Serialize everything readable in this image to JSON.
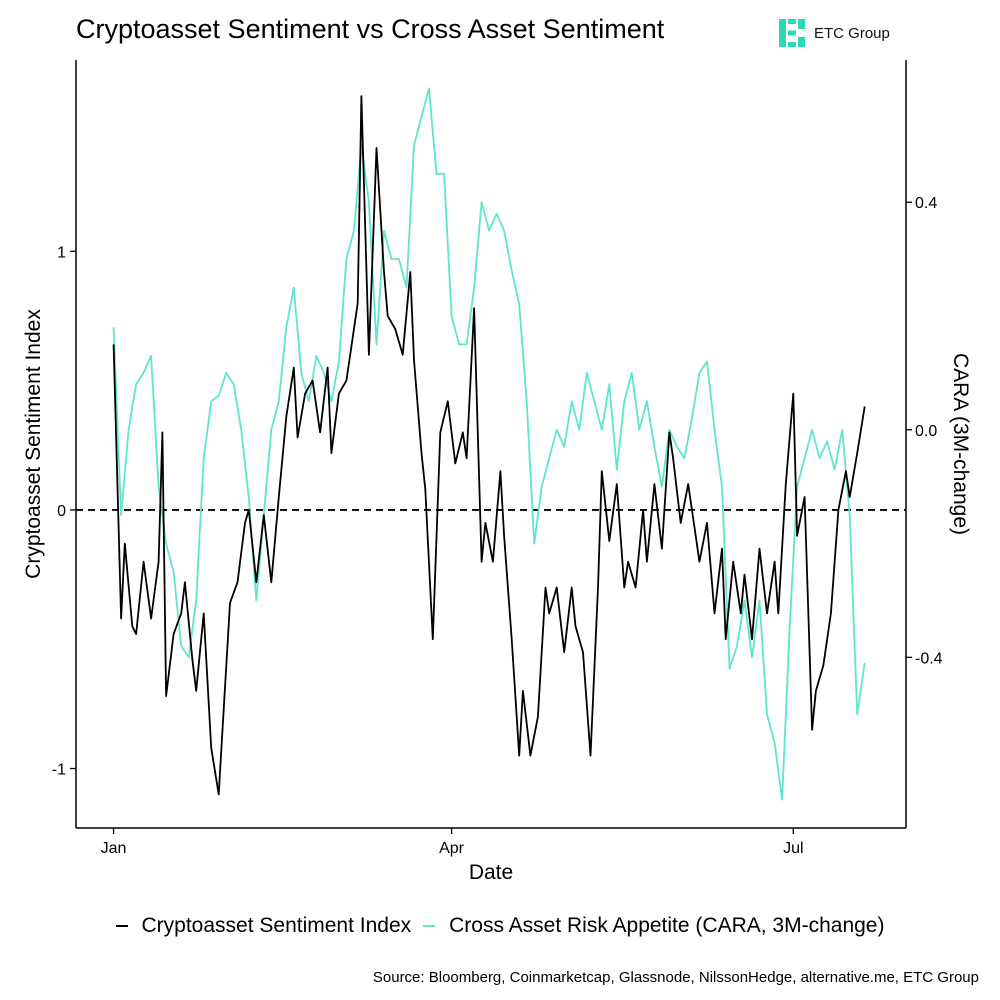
{
  "header": {
    "title": "Cryptoasset Sentiment vs Cross Asset Sentiment",
    "logo_text": "ETC Group"
  },
  "footer": {
    "source": "Source: Bloomberg, Coinmarketcap, Glassnode, NilssonHedge, alternative.me, ETC Group"
  },
  "colors": {
    "sentiment": "#000000",
    "cara": "#5ee6cc",
    "logo": "#2bd9b4"
  },
  "icons": {
    "logo": "etc-group-logo-icon"
  },
  "chart_data": {
    "type": "line",
    "xlabel": "Date",
    "ylabel_left": "Cryptoasset Sentiment Index",
    "ylabel_right": "CARA (3M-change)",
    "x_ticks": [
      {
        "date": "2022-01-01",
        "label": "Jan"
      },
      {
        "date": "2022-04-01",
        "label": "Apr"
      },
      {
        "date": "2022-07-01",
        "label": "Jul"
      }
    ],
    "x_range": [
      "2021-12-22",
      "2022-07-31"
    ],
    "y_left": {
      "range": [
        -1.23,
        1.74
      ],
      "ticks": [
        -1,
        0,
        1
      ],
      "tick_labels": [
        "-1",
        "0",
        "1"
      ]
    },
    "y_right": {
      "range": [
        -0.7,
        0.65
      ],
      "ticks": [
        -0.4,
        0.0,
        0.4
      ],
      "tick_labels": [
        "-0.4",
        "0.0",
        "0.4"
      ]
    },
    "reference_line": {
      "axis": "left",
      "value": 0,
      "style": "dashed"
    },
    "grid": false,
    "legend_position": "bottom",
    "series": [
      {
        "name": "Cryptoasset Sentiment Index",
        "axis": "left",
        "color": "#000000",
        "points": [
          [
            "2022-01-01",
            0.64
          ],
          [
            "2022-01-03",
            -0.42
          ],
          [
            "2022-01-04",
            -0.13
          ],
          [
            "2022-01-06",
            -0.45
          ],
          [
            "2022-01-07",
            -0.48
          ],
          [
            "2022-01-09",
            -0.2
          ],
          [
            "2022-01-11",
            -0.42
          ],
          [
            "2022-01-13",
            -0.2
          ],
          [
            "2022-01-14",
            0.3
          ],
          [
            "2022-01-15",
            -0.72
          ],
          [
            "2022-01-17",
            -0.48
          ],
          [
            "2022-01-19",
            -0.4
          ],
          [
            "2022-01-20",
            -0.28
          ],
          [
            "2022-01-22",
            -0.58
          ],
          [
            "2022-01-23",
            -0.7
          ],
          [
            "2022-01-25",
            -0.4
          ],
          [
            "2022-01-27",
            -0.92
          ],
          [
            "2022-01-29",
            -1.1
          ],
          [
            "2022-01-30",
            -0.85
          ],
          [
            "2022-02-01",
            -0.36
          ],
          [
            "2022-02-03",
            -0.28
          ],
          [
            "2022-02-05",
            -0.05
          ],
          [
            "2022-02-06",
            0.0
          ],
          [
            "2022-02-08",
            -0.28
          ],
          [
            "2022-02-10",
            -0.02
          ],
          [
            "2022-02-12",
            -0.28
          ],
          [
            "2022-02-14",
            0.05
          ],
          [
            "2022-02-16",
            0.36
          ],
          [
            "2022-02-18",
            0.55
          ],
          [
            "2022-02-19",
            0.28
          ],
          [
            "2022-02-21",
            0.45
          ],
          [
            "2022-02-23",
            0.5
          ],
          [
            "2022-02-25",
            0.3
          ],
          [
            "2022-02-27",
            0.55
          ],
          [
            "2022-02-28",
            0.22
          ],
          [
            "2022-03-02",
            0.45
          ],
          [
            "2022-03-04",
            0.5
          ],
          [
            "2022-03-05",
            0.6
          ],
          [
            "2022-03-07",
            0.8
          ],
          [
            "2022-03-08",
            1.6
          ],
          [
            "2022-03-10",
            0.6
          ],
          [
            "2022-03-12",
            1.4
          ],
          [
            "2022-03-14",
            0.92
          ],
          [
            "2022-03-15",
            0.75
          ],
          [
            "2022-03-17",
            0.7
          ],
          [
            "2022-03-19",
            0.6
          ],
          [
            "2022-03-21",
            0.92
          ],
          [
            "2022-03-22",
            0.58
          ],
          [
            "2022-03-24",
            0.22
          ],
          [
            "2022-03-25",
            0.08
          ],
          [
            "2022-03-27",
            -0.5
          ],
          [
            "2022-03-29",
            0.3
          ],
          [
            "2022-03-31",
            0.42
          ],
          [
            "2022-04-02",
            0.18
          ],
          [
            "2022-04-04",
            0.3
          ],
          [
            "2022-04-05",
            0.2
          ],
          [
            "2022-04-07",
            0.78
          ],
          [
            "2022-04-09",
            -0.2
          ],
          [
            "2022-04-10",
            -0.05
          ],
          [
            "2022-04-12",
            -0.2
          ],
          [
            "2022-04-14",
            0.15
          ],
          [
            "2022-04-15",
            -0.1
          ],
          [
            "2022-04-17",
            -0.5
          ],
          [
            "2022-04-19",
            -0.95
          ],
          [
            "2022-04-20",
            -0.7
          ],
          [
            "2022-04-22",
            -0.95
          ],
          [
            "2022-04-24",
            -0.8
          ],
          [
            "2022-04-26",
            -0.3
          ],
          [
            "2022-04-27",
            -0.4
          ],
          [
            "2022-04-29",
            -0.3
          ],
          [
            "2022-05-01",
            -0.55
          ],
          [
            "2022-05-03",
            -0.3
          ],
          [
            "2022-05-04",
            -0.45
          ],
          [
            "2022-05-06",
            -0.55
          ],
          [
            "2022-05-08",
            -0.95
          ],
          [
            "2022-05-10",
            -0.3
          ],
          [
            "2022-05-11",
            0.15
          ],
          [
            "2022-05-13",
            -0.12
          ],
          [
            "2022-05-15",
            0.1
          ],
          [
            "2022-05-17",
            -0.3
          ],
          [
            "2022-05-18",
            -0.2
          ],
          [
            "2022-05-20",
            -0.3
          ],
          [
            "2022-05-22",
            0.0
          ],
          [
            "2022-05-23",
            -0.2
          ],
          [
            "2022-05-25",
            0.1
          ],
          [
            "2022-05-27",
            -0.15
          ],
          [
            "2022-05-29",
            0.3
          ],
          [
            "2022-05-30",
            0.2
          ],
          [
            "2022-06-01",
            -0.05
          ],
          [
            "2022-06-03",
            0.1
          ],
          [
            "2022-06-05",
            -0.1
          ],
          [
            "2022-06-06",
            -0.2
          ],
          [
            "2022-06-08",
            -0.05
          ],
          [
            "2022-06-10",
            -0.4
          ],
          [
            "2022-06-12",
            -0.15
          ],
          [
            "2022-06-13",
            -0.5
          ],
          [
            "2022-06-15",
            -0.2
          ],
          [
            "2022-06-17",
            -0.4
          ],
          [
            "2022-06-18",
            -0.25
          ],
          [
            "2022-06-20",
            -0.5
          ],
          [
            "2022-06-22",
            -0.15
          ],
          [
            "2022-06-24",
            -0.4
          ],
          [
            "2022-06-26",
            -0.2
          ],
          [
            "2022-06-27",
            -0.4
          ],
          [
            "2022-06-29",
            0.1
          ],
          [
            "2022-07-01",
            0.45
          ],
          [
            "2022-07-02",
            -0.1
          ],
          [
            "2022-07-04",
            0.05
          ],
          [
            "2022-07-06",
            -0.85
          ],
          [
            "2022-07-07",
            -0.7
          ],
          [
            "2022-07-09",
            -0.6
          ],
          [
            "2022-07-11",
            -0.4
          ],
          [
            "2022-07-13",
            0.0
          ],
          [
            "2022-07-15",
            0.15
          ],
          [
            "2022-07-16",
            0.05
          ],
          [
            "2022-07-18",
            0.22
          ],
          [
            "2022-07-20",
            0.4
          ]
        ]
      },
      {
        "name": "Cross Asset Risk Appetite (CARA, 3M-change)",
        "axis": "right",
        "color": "#5ee6cc",
        "points": [
          [
            "2022-01-01",
            0.18
          ],
          [
            "2022-01-03",
            -0.15
          ],
          [
            "2022-01-05",
            0.0
          ],
          [
            "2022-01-07",
            0.08
          ],
          [
            "2022-01-09",
            0.1
          ],
          [
            "2022-01-11",
            0.13
          ],
          [
            "2022-01-13",
            -0.1
          ],
          [
            "2022-01-15",
            -0.2
          ],
          [
            "2022-01-17",
            -0.25
          ],
          [
            "2022-01-19",
            -0.38
          ],
          [
            "2022-01-21",
            -0.4
          ],
          [
            "2022-01-23",
            -0.3
          ],
          [
            "2022-01-25",
            -0.05
          ],
          [
            "2022-01-27",
            0.05
          ],
          [
            "2022-01-29",
            0.06
          ],
          [
            "2022-01-31",
            0.1
          ],
          [
            "2022-02-02",
            0.08
          ],
          [
            "2022-02-04",
            0.0
          ],
          [
            "2022-02-06",
            -0.12
          ],
          [
            "2022-02-08",
            -0.3
          ],
          [
            "2022-02-10",
            -0.15
          ],
          [
            "2022-02-12",
            0.0
          ],
          [
            "2022-02-14",
            0.05
          ],
          [
            "2022-02-16",
            0.18
          ],
          [
            "2022-02-18",
            0.25
          ],
          [
            "2022-02-20",
            0.1
          ],
          [
            "2022-02-22",
            0.05
          ],
          [
            "2022-02-24",
            0.13
          ],
          [
            "2022-02-26",
            0.1
          ],
          [
            "2022-02-28",
            0.05
          ],
          [
            "2022-03-02",
            0.12
          ],
          [
            "2022-03-04",
            0.3
          ],
          [
            "2022-03-06",
            0.35
          ],
          [
            "2022-03-08",
            0.5
          ],
          [
            "2022-03-10",
            0.4
          ],
          [
            "2022-03-12",
            0.15
          ],
          [
            "2022-03-14",
            0.35
          ],
          [
            "2022-03-16",
            0.3
          ],
          [
            "2022-03-18",
            0.3
          ],
          [
            "2022-03-20",
            0.25
          ],
          [
            "2022-03-22",
            0.5
          ],
          [
            "2022-03-24",
            0.55
          ],
          [
            "2022-03-26",
            0.6
          ],
          [
            "2022-03-28",
            0.45
          ],
          [
            "2022-03-30",
            0.45
          ],
          [
            "2022-04-01",
            0.2
          ],
          [
            "2022-04-03",
            0.15
          ],
          [
            "2022-04-05",
            0.15
          ],
          [
            "2022-04-07",
            0.25
          ],
          [
            "2022-04-09",
            0.4
          ],
          [
            "2022-04-11",
            0.35
          ],
          [
            "2022-04-13",
            0.38
          ],
          [
            "2022-04-15",
            0.35
          ],
          [
            "2022-04-17",
            0.28
          ],
          [
            "2022-04-19",
            0.22
          ],
          [
            "2022-04-21",
            0.05
          ],
          [
            "2022-04-23",
            -0.2
          ],
          [
            "2022-04-25",
            -0.1
          ],
          [
            "2022-04-27",
            -0.05
          ],
          [
            "2022-04-29",
            0.0
          ],
          [
            "2022-05-01",
            -0.03
          ],
          [
            "2022-05-03",
            0.05
          ],
          [
            "2022-05-05",
            0.0
          ],
          [
            "2022-05-07",
            0.1
          ],
          [
            "2022-05-09",
            0.05
          ],
          [
            "2022-05-11",
            0.0
          ],
          [
            "2022-05-13",
            0.08
          ],
          [
            "2022-05-15",
            -0.07
          ],
          [
            "2022-05-17",
            0.05
          ],
          [
            "2022-05-19",
            0.1
          ],
          [
            "2022-05-21",
            0.0
          ],
          [
            "2022-05-23",
            0.05
          ],
          [
            "2022-05-25",
            -0.03
          ],
          [
            "2022-05-27",
            -0.1
          ],
          [
            "2022-05-29",
            0.0
          ],
          [
            "2022-05-31",
            -0.03
          ],
          [
            "2022-06-02",
            -0.05
          ],
          [
            "2022-06-04",
            0.02
          ],
          [
            "2022-06-06",
            0.1
          ],
          [
            "2022-06-08",
            0.12
          ],
          [
            "2022-06-10",
            0.0
          ],
          [
            "2022-06-12",
            -0.1
          ],
          [
            "2022-06-14",
            -0.42
          ],
          [
            "2022-06-16",
            -0.38
          ],
          [
            "2022-06-18",
            -0.3
          ],
          [
            "2022-06-20",
            -0.4
          ],
          [
            "2022-06-22",
            -0.3
          ],
          [
            "2022-06-24",
            -0.5
          ],
          [
            "2022-06-26",
            -0.55
          ],
          [
            "2022-06-28",
            -0.65
          ],
          [
            "2022-06-30",
            -0.35
          ],
          [
            "2022-07-02",
            -0.1
          ],
          [
            "2022-07-04",
            -0.05
          ],
          [
            "2022-07-06",
            0.0
          ],
          [
            "2022-07-08",
            -0.05
          ],
          [
            "2022-07-10",
            -0.02
          ],
          [
            "2022-07-12",
            -0.07
          ],
          [
            "2022-07-14",
            0.0
          ],
          [
            "2022-07-16",
            -0.15
          ],
          [
            "2022-07-18",
            -0.5
          ],
          [
            "2022-07-20",
            -0.41
          ]
        ]
      }
    ]
  }
}
